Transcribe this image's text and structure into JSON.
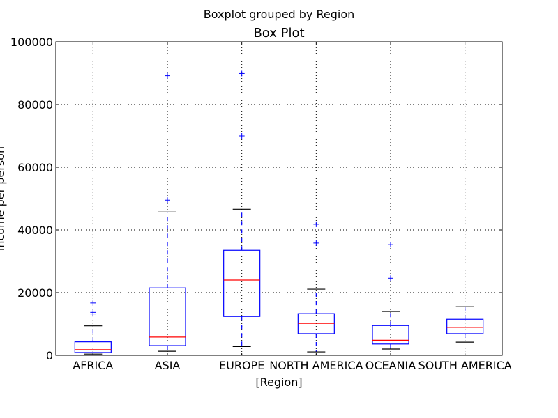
{
  "chart_data": {
    "type": "boxplot",
    "suptitle": "Boxplot grouped by Region",
    "title": "Box Plot",
    "xlabel": "[Region]",
    "ylabel": "income per person",
    "ylim": [
      0,
      100000
    ],
    "yticks": [
      0,
      20000,
      40000,
      60000,
      80000,
      100000
    ],
    "ytick_labels": [
      "0",
      "20000",
      "40000",
      "60000",
      "80000",
      "100000"
    ],
    "grid": true,
    "categories": [
      "AFRICA",
      "ASIA",
      "EUROPE",
      "NORTH AMERICA",
      "OCEANIA",
      "SOUTH AMERICA"
    ],
    "boxes": [
      {
        "whisker_low": 400,
        "q1": 900,
        "median": 1800,
        "q3": 4300,
        "whisker_high": 9400,
        "outliers": [
          13200,
          13700,
          16700
        ]
      },
      {
        "whisker_low": 1300,
        "q1": 3100,
        "median": 5800,
        "q3": 21500,
        "whisker_high": 45700,
        "outliers": [
          49500,
          89200
        ]
      },
      {
        "whisker_low": 2800,
        "q1": 12400,
        "median": 24000,
        "q3": 33500,
        "whisker_high": 46600,
        "outliers": [
          70000,
          89900
        ]
      },
      {
        "whisker_low": 1100,
        "q1": 6900,
        "median": 10200,
        "q3": 13300,
        "whisker_high": 21100,
        "outliers": [
          35800,
          41800
        ]
      },
      {
        "whisker_low": 2000,
        "q1": 3600,
        "median": 4800,
        "q3": 9500,
        "whisker_high": 14000,
        "outliers": [
          24600,
          35300
        ]
      },
      {
        "whisker_low": 4200,
        "q1": 6900,
        "median": 8900,
        "q3": 11500,
        "whisker_high": 15500,
        "outliers": []
      }
    ],
    "colors": {
      "box": "#0000ff",
      "median": "#ff0000",
      "cap": "#000000",
      "outlier": "#0000ff",
      "grid": "#000000"
    }
  }
}
